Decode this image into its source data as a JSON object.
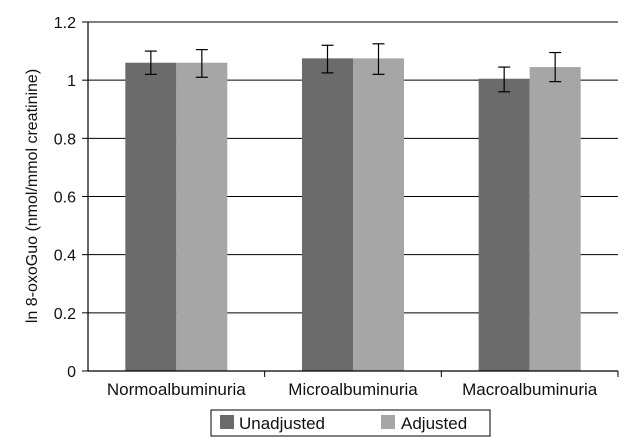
{
  "chart_data": {
    "type": "bar",
    "ylabel": "ln 8-oxoGuo (nmol/mmol creatinine)",
    "ylim": [
      0,
      1.2
    ],
    "yticks": [
      "0",
      "0.2",
      "0.4",
      "0.6",
      "0.8",
      "1",
      "1.2"
    ],
    "categories": [
      "Normoalbuminuria",
      "Microalbuminuria",
      "Macroalbuminuria"
    ],
    "series": [
      {
        "name": "Unadjusted",
        "color": "#6b6b6b",
        "values": [
          1.06,
          1.075,
          1.005
        ],
        "err_low": [
          1.02,
          1.025,
          0.96
        ],
        "err_high": [
          1.1,
          1.12,
          1.045
        ]
      },
      {
        "name": "Adjusted",
        "color": "#a6a6a6",
        "values": [
          1.06,
          1.075,
          1.045
        ],
        "err_low": [
          1.01,
          1.02,
          0.995
        ],
        "err_high": [
          1.105,
          1.125,
          1.095
        ]
      }
    ],
    "grid": "horizontal",
    "legend": "bottom-center"
  }
}
